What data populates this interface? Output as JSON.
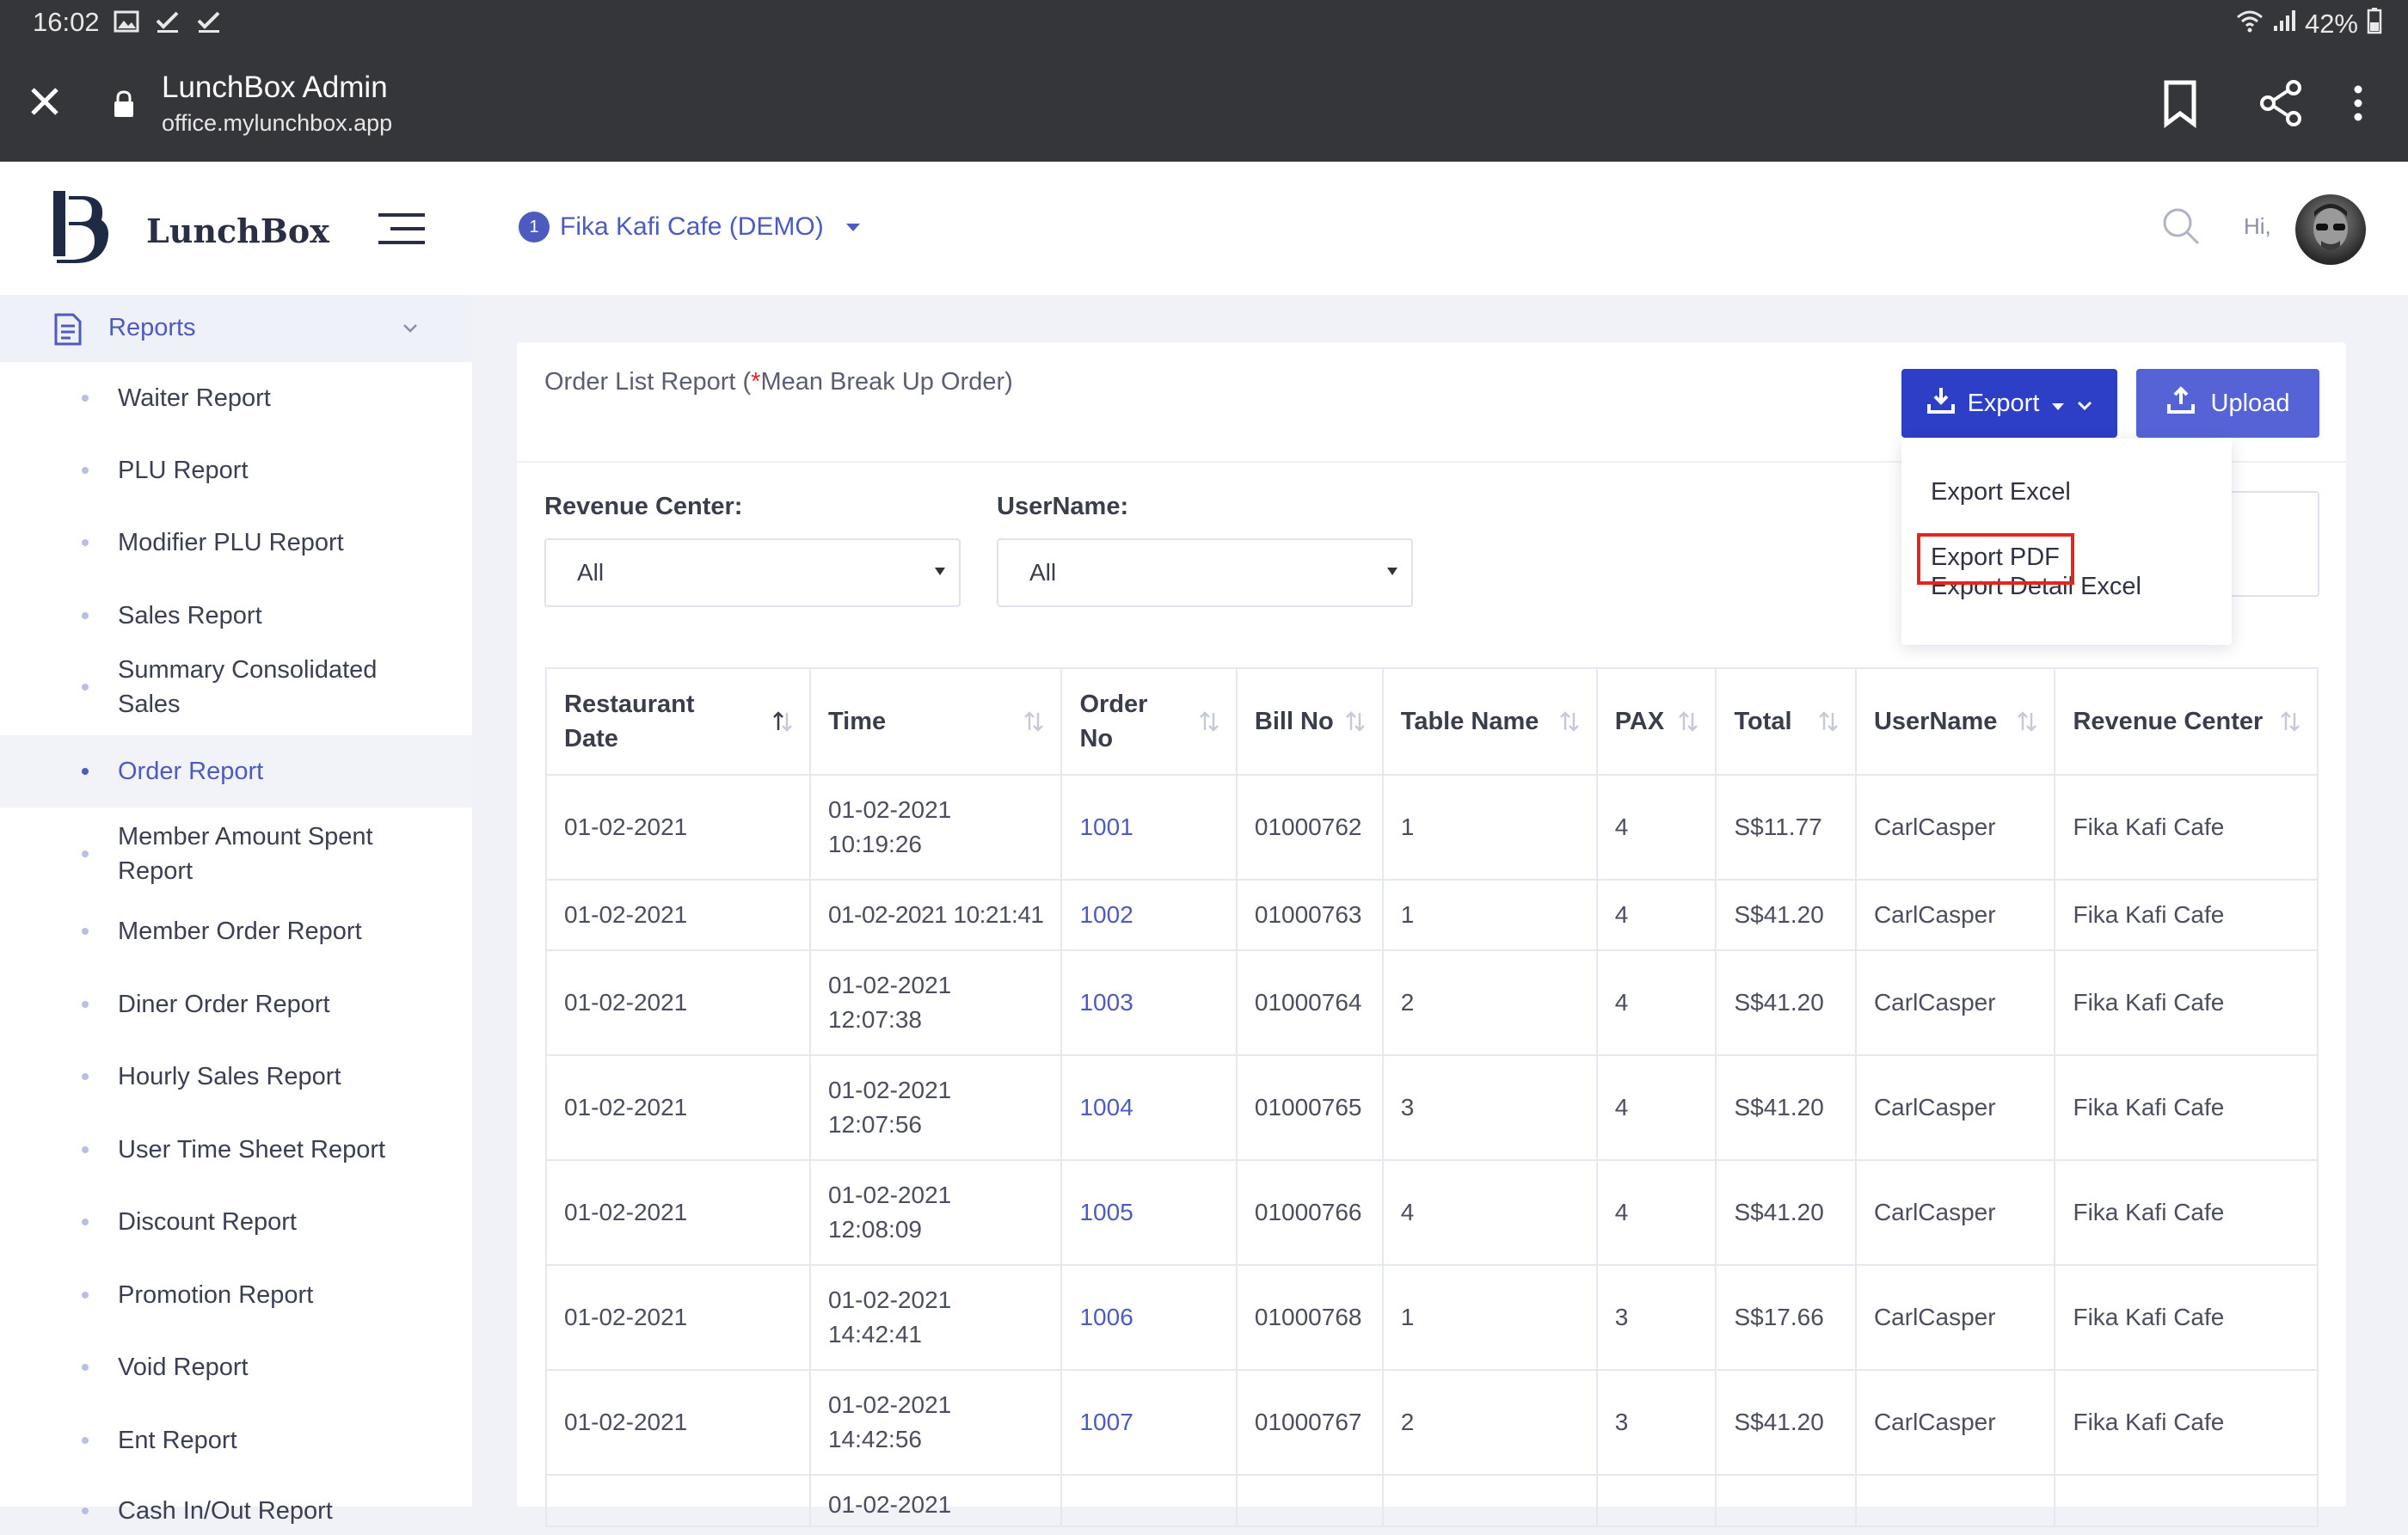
{
  "statusbar": {
    "time": "16:02",
    "battery": "42%"
  },
  "browser": {
    "title": "LunchBox Admin",
    "url": "office.mylunchbox.app"
  },
  "brand": {
    "name": "LunchBox"
  },
  "sidebar": {
    "group_label": "Reports",
    "items": [
      {
        "label": "Waiter Report"
      },
      {
        "label": "PLU Report"
      },
      {
        "label": "Modifier PLU Report"
      },
      {
        "label": "Sales Report"
      },
      {
        "label": "Summary Consolidated Sales"
      },
      {
        "label": "Order Report",
        "active": true
      },
      {
        "label": "Member Amount Spent Report"
      },
      {
        "label": "Member Order Report"
      },
      {
        "label": "Diner Order Report"
      },
      {
        "label": "Hourly Sales Report"
      },
      {
        "label": "User Time Sheet Report"
      },
      {
        "label": "Discount Report"
      },
      {
        "label": "Promotion Report"
      },
      {
        "label": "Void Report"
      },
      {
        "label": "Ent Report"
      },
      {
        "label": "Cash In/Out Report"
      }
    ]
  },
  "header": {
    "venue_badge": "1",
    "venue_name": "Fika Kafi Cafe (DEMO)",
    "greeting": "Hi,"
  },
  "card": {
    "title_prefix": "Order List Report (",
    "title_star": "*",
    "title_suffix": "Mean Break Up Order)",
    "export_label": "Export",
    "upload_label": "Upload"
  },
  "export_menu": {
    "items": [
      "Export Excel",
      "Export PDF",
      "Export Detail Excel"
    ],
    "highlighted": "Export PDF"
  },
  "filters": {
    "revenue_center": {
      "label": "Revenue Center:",
      "value": "All"
    },
    "username": {
      "label": "UserName:",
      "value": "All"
    }
  },
  "table": {
    "columns": [
      "Restaurant Date",
      "Time",
      "Order No",
      "Bill No",
      "Table Name",
      "PAX",
      "Total",
      "UserName",
      "Revenue Center"
    ],
    "rows": [
      [
        "01-02-2021",
        "01-02-2021 10:19:26",
        "1001",
        "01000762",
        "1",
        "4",
        "S$11.77",
        "CarlCasper",
        "Fika Kafi Cafe"
      ],
      [
        "01-02-2021",
        "01-02-2021 10:21:41",
        "1002",
        "01000763",
        "1",
        "4",
        "S$41.20",
        "CarlCasper",
        "Fika Kafi Cafe"
      ],
      [
        "01-02-2021",
        "01-02-2021 12:07:38",
        "1003",
        "01000764",
        "2",
        "4",
        "S$41.20",
        "CarlCasper",
        "Fika Kafi Cafe"
      ],
      [
        "01-02-2021",
        "01-02-2021 12:07:56",
        "1004",
        "01000765",
        "3",
        "4",
        "S$41.20",
        "CarlCasper",
        "Fika Kafi Cafe"
      ],
      [
        "01-02-2021",
        "01-02-2021 12:08:09",
        "1005",
        "01000766",
        "4",
        "4",
        "S$41.20",
        "CarlCasper",
        "Fika Kafi Cafe"
      ],
      [
        "01-02-2021",
        "01-02-2021 14:42:41",
        "1006",
        "01000768",
        "1",
        "3",
        "S$17.66",
        "CarlCasper",
        "Fika Kafi Cafe"
      ],
      [
        "01-02-2021",
        "01-02-2021 14:42:56",
        "1007",
        "01000767",
        "2",
        "3",
        "S$41.20",
        "CarlCasper",
        "Fika Kafi Cafe"
      ],
      [
        "",
        "01-02-2021",
        "",
        "",
        "",
        "",
        "",
        "",
        ""
      ]
    ]
  },
  "colors": {
    "accent": "#4d5bbf",
    "export_button": "#2d3ec7",
    "upload_button": "#5563d6",
    "highlight": "#e5261f",
    "chrome": "#35363a"
  }
}
